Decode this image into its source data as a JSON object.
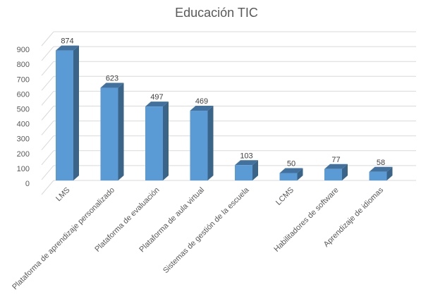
{
  "chart_data": {
    "type": "bar",
    "title": "Educación TIC",
    "xlabel": "",
    "ylabel": "",
    "categories": [
      "LMS",
      "Plataforma de aprendizaje personalizado",
      "Plataforma de evaluación",
      "Plataforma de aula virtual",
      "Sistemas de gestión de la escuela",
      "LCMS",
      "Habilitadores de software",
      "Aprendizaje de idiomas"
    ],
    "values": [
      874,
      623,
      497,
      469,
      103,
      50,
      77,
      58
    ],
    "ylim": [
      0,
      1000
    ],
    "yticks": [
      0,
      100,
      200,
      300,
      400,
      500,
      600,
      700,
      800,
      900
    ],
    "grid": true,
    "legend": "none",
    "style": "3d-column",
    "colors": {
      "front": "#5b9bd5",
      "side": "#3b6489",
      "top": "#41719c",
      "grid": "#d9d9d9",
      "text": "#595959"
    }
  }
}
